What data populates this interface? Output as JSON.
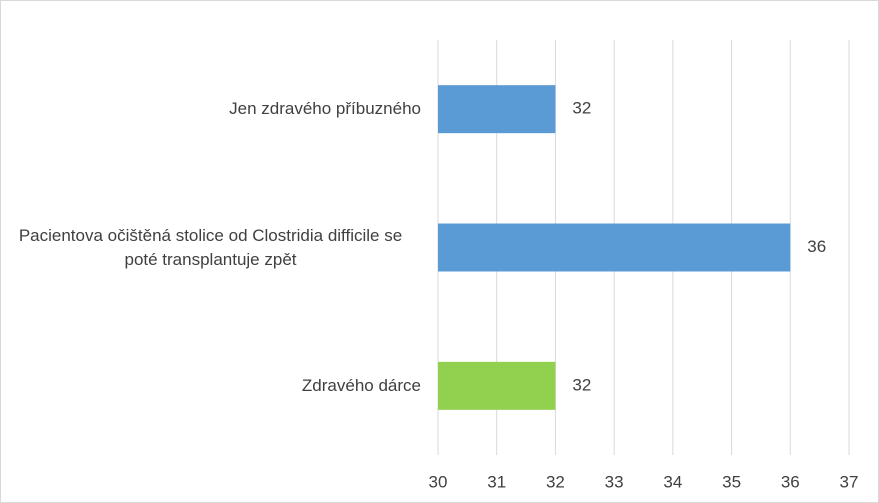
{
  "chart_data": {
    "type": "bar",
    "orientation": "horizontal",
    "categories": [
      "Jen zdravého příbuzného",
      "Pacientova očištěná stolice od Clostridia difficile se poté transplantuje zpět",
      "Zdravého dárce"
    ],
    "values": [
      32,
      36,
      32
    ],
    "colors": [
      "#5b9bd5",
      "#5b9bd5",
      "#92d050"
    ],
    "xlim": [
      30,
      37
    ],
    "xticks": [
      30,
      31,
      32,
      33,
      34,
      35,
      36,
      37
    ],
    "grid": true
  }
}
